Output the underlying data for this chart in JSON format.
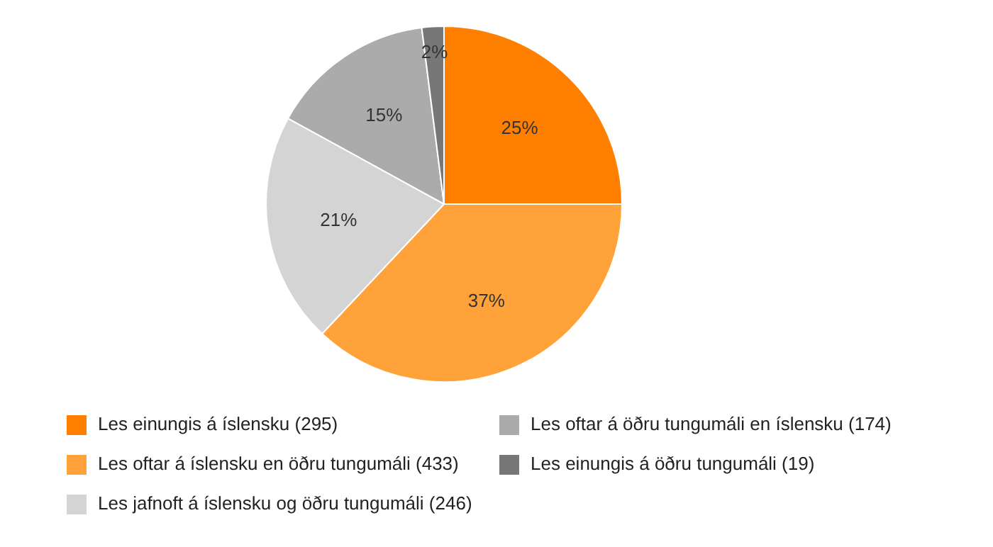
{
  "chart_data": {
    "type": "pie",
    "categories": [
      "Les einungis á íslensku (295)",
      "Les oftar á íslensku en öðru tungumáli (433)",
      "Les jafnoft á íslensku og öðru tungumáli (246)",
      "Les oftar á öðru tungumáli en íslensku (174)",
      "Les einungis á öðru tungumáli (19)"
    ],
    "values": [
      25,
      37,
      21,
      15,
      2
    ],
    "value_labels": [
      "25%",
      "37%",
      "21%",
      "15%",
      "2%"
    ],
    "colors": [
      "#ff7f00",
      "#ffa23a",
      "#d4d4d4",
      "#ababab",
      "#777777"
    ],
    "legend": "bottom"
  }
}
